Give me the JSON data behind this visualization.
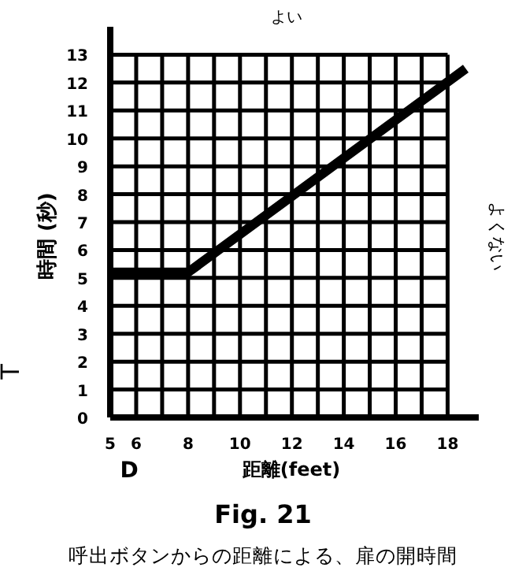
{
  "chart_data": {
    "type": "line",
    "title": "Fig. 21",
    "subtitle": "呼出ボタンからの距離による、扉の開時間",
    "xlabel": "距離(feet)",
    "ylabel": "時間 (秒)",
    "annotations": [
      "よい",
      "よくない",
      "T",
      "D"
    ],
    "x": [
      5,
      8,
      18.7
    ],
    "values": [
      5.2,
      5.2,
      12.5
    ],
    "color": "#000000",
    "xlim": [
      5,
      19.2
    ],
    "ylim": [
      0,
      14
    ],
    "xticks": [
      5,
      6,
      {
        "value": 7,
        "label": null
      },
      8,
      {
        "value": 9,
        "label": null
      },
      10,
      {
        "value": 11,
        "label": null
      },
      12,
      {
        "value": 13,
        "label": null
      },
      14,
      {
        "value": 15,
        "label": null
      },
      16,
      {
        "value": 17,
        "label": null
      },
      18
    ],
    "yticks": [
      0,
      1,
      2,
      3,
      4,
      5,
      6,
      7,
      8,
      9,
      10,
      11,
      12,
      13
    ],
    "grid": true,
    "marker": "none",
    "line_style": "solid"
  }
}
